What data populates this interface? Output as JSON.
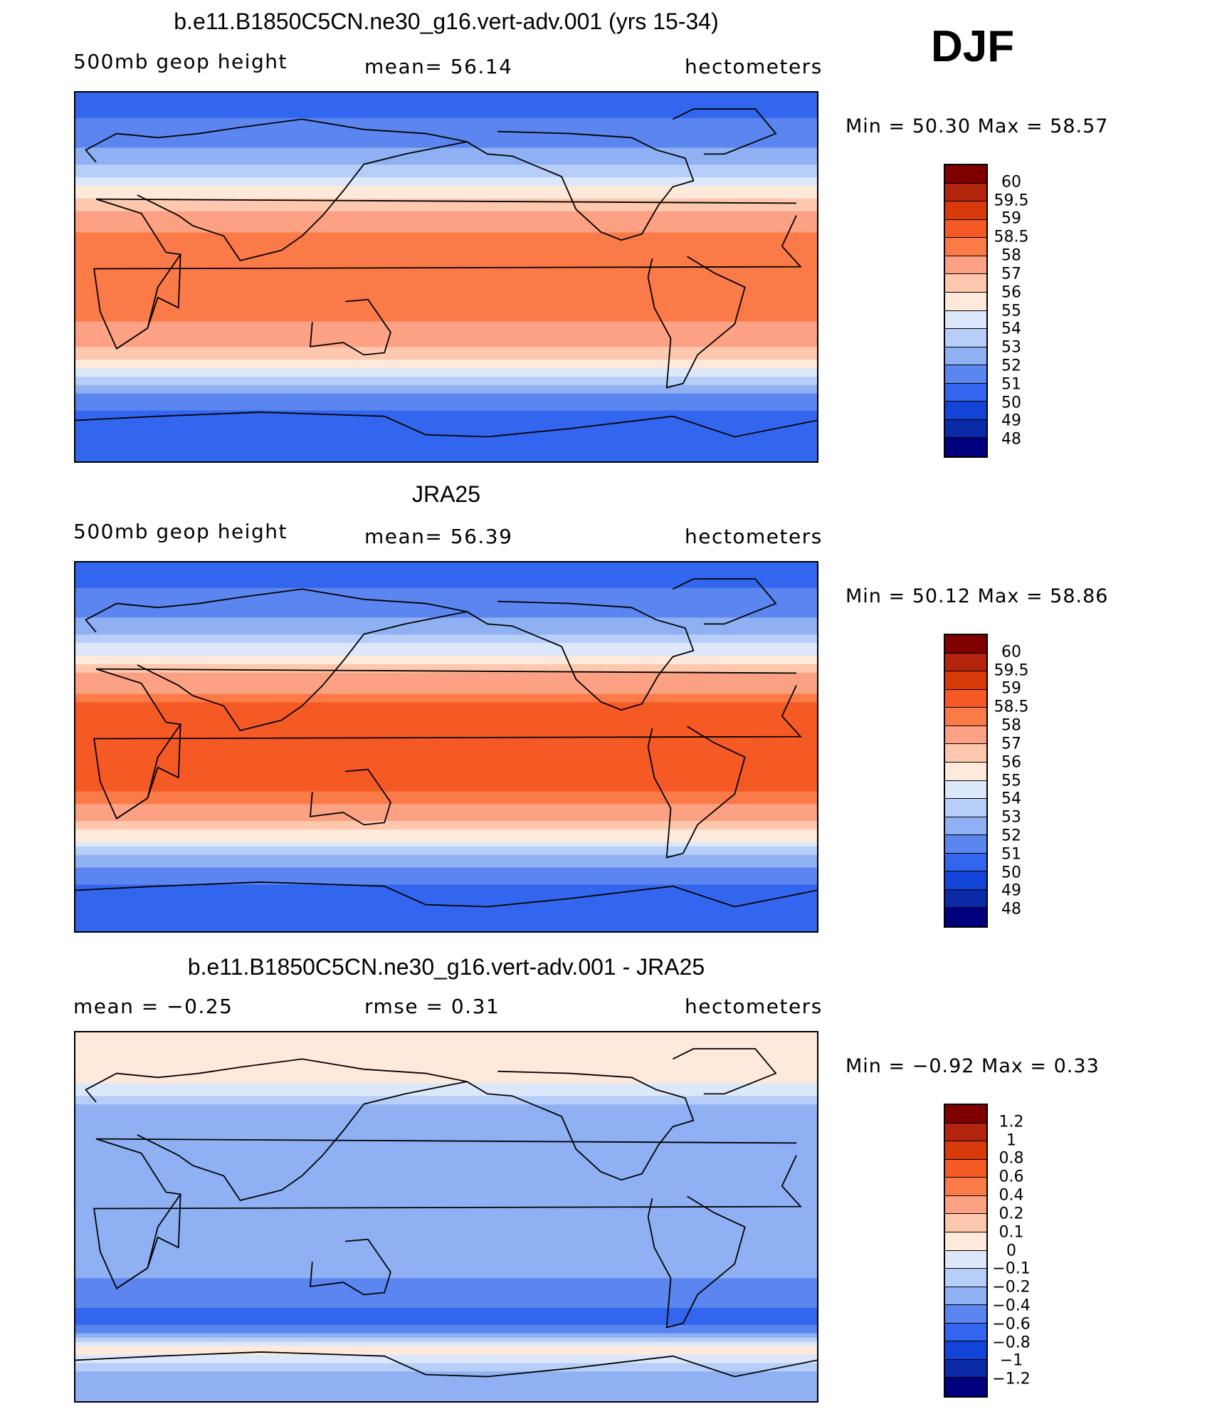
{
  "figure": {
    "season_label": "DJF"
  },
  "panels": [
    {
      "title": "b.e11.B1850C5CN.ne30_g16.vert-adv.001 (yrs 15-34)",
      "variable": "500mb geop height",
      "mean_text": "mean=   56.14",
      "units": "hectometers",
      "minmax_text": "Min =   50.30 Max =   58.57"
    },
    {
      "title": "JRA25",
      "variable": "500mb geop height",
      "mean_text": "mean=   56.39",
      "units": "hectometers",
      "minmax_text": "Min =   50.12 Max =   58.86"
    },
    {
      "title": "b.e11.B1850C5CN.ne30_g16.vert-adv.001 - JRA25",
      "variable": "mean =   −0.25",
      "mean_text": "rmse =    0.31",
      "units": "hectometers",
      "minmax_text": "Min =   −0.92 Max =    0.33"
    }
  ],
  "chart_data": [
    {
      "type": "heatmap",
      "title": "b.e11.B1850C5CN.ne30_g16.vert-adv.001 (yrs 15-34)",
      "subtitle": "500mb geop height",
      "units": "hectometers",
      "mean": 56.14,
      "min": 50.3,
      "max": 58.57,
      "colorbar_labels": [
        "60",
        "59.5",
        "59",
        "58.5",
        "58",
        "57",
        "56",
        "55",
        "54",
        "53",
        "52",
        "51",
        "50",
        "49",
        "48"
      ],
      "colorbar_colors": [
        "#800000",
        "#b2240c",
        "#d93a0a",
        "#f55a25",
        "#fa7a48",
        "#fca183",
        "#fdc8ad",
        "#fee9da",
        "#dce8fa",
        "#b7cff8",
        "#8fb0f2",
        "#5b85ef",
        "#3366ee",
        "#1244d8",
        "#0a2aa8",
        "#00007f"
      ],
      "latitude_profile": [
        {
          "lat": 90,
          "value": 50.5
        },
        {
          "lat": 70,
          "value": 51.3
        },
        {
          "lat": 55,
          "value": 53.0
        },
        {
          "lat": 45,
          "value": 54.8
        },
        {
          "lat": 35,
          "value": 56.8
        },
        {
          "lat": 20,
          "value": 58.2
        },
        {
          "lat": 0,
          "value": 58.3
        },
        {
          "lat": -20,
          "value": 58.2
        },
        {
          "lat": -35,
          "value": 57.0
        },
        {
          "lat": -45,
          "value": 55.0
        },
        {
          "lat": -55,
          "value": 52.2
        },
        {
          "lat": -70,
          "value": 50.5
        },
        {
          "lat": -90,
          "value": 50.3
        }
      ]
    },
    {
      "type": "heatmap",
      "title": "JRA25",
      "subtitle": "500mb geop height",
      "units": "hectometers",
      "mean": 56.39,
      "min": 50.12,
      "max": 58.86,
      "colorbar_labels": [
        "60",
        "59.5",
        "59",
        "58.5",
        "58",
        "57",
        "56",
        "55",
        "54",
        "53",
        "52",
        "51",
        "50",
        "49",
        "48"
      ],
      "colorbar_colors": [
        "#800000",
        "#b2240c",
        "#d93a0a",
        "#f55a25",
        "#fa7a48",
        "#fca183",
        "#fdc8ad",
        "#fee9da",
        "#dce8fa",
        "#b7cff8",
        "#8fb0f2",
        "#5b85ef",
        "#3366ee",
        "#1244d8",
        "#0a2aa8",
        "#00007f"
      ],
      "latitude_profile": [
        {
          "lat": 90,
          "value": 50.4
        },
        {
          "lat": 70,
          "value": 51.3
        },
        {
          "lat": 55,
          "value": 53.0
        },
        {
          "lat": 45,
          "value": 55.0
        },
        {
          "lat": 35,
          "value": 57.2
        },
        {
          "lat": 20,
          "value": 58.6
        },
        {
          "lat": 0,
          "value": 58.7
        },
        {
          "lat": -20,
          "value": 58.6
        },
        {
          "lat": -35,
          "value": 57.3
        },
        {
          "lat": -45,
          "value": 55.2
        },
        {
          "lat": -55,
          "value": 52.4
        },
        {
          "lat": -70,
          "value": 50.7
        },
        {
          "lat": -90,
          "value": 50.4
        }
      ]
    },
    {
      "type": "heatmap",
      "title": "b.e11.B1850C5CN.ne30_g16.vert-adv.001 - JRA25",
      "units": "hectometers",
      "mean": -0.25,
      "rmse": 0.31,
      "min": -0.92,
      "max": 0.33,
      "colorbar_labels": [
        "1.2",
        "1",
        "0.8",
        "0.6",
        "0.4",
        "0.2",
        "0.1",
        "0",
        "−0.1",
        "−0.2",
        "−0.4",
        "−0.6",
        "−0.8",
        "−1",
        "−1.2"
      ],
      "colorbar_colors": [
        "#800000",
        "#b2240c",
        "#d93a0a",
        "#f55a25",
        "#fa7a48",
        "#fca183",
        "#fdc8ad",
        "#fee9da",
        "#dce8fa",
        "#b7cff8",
        "#8fb0f2",
        "#5b85ef",
        "#3366ee",
        "#1244d8",
        "#0a2aa8",
        "#00007f"
      ],
      "latitude_profile": [
        {
          "lat": 90,
          "value": 0.05
        },
        {
          "lat": 70,
          "value": 0.1
        },
        {
          "lat": 55,
          "value": -0.2
        },
        {
          "lat": 40,
          "value": -0.4
        },
        {
          "lat": 20,
          "value": -0.3
        },
        {
          "lat": 0,
          "value": -0.25
        },
        {
          "lat": -20,
          "value": -0.3
        },
        {
          "lat": -40,
          "value": -0.5
        },
        {
          "lat": -50,
          "value": -0.7
        },
        {
          "lat": -65,
          "value": 0.05
        },
        {
          "lat": -80,
          "value": -0.3
        },
        {
          "lat": -90,
          "value": -0.2
        }
      ]
    }
  ]
}
